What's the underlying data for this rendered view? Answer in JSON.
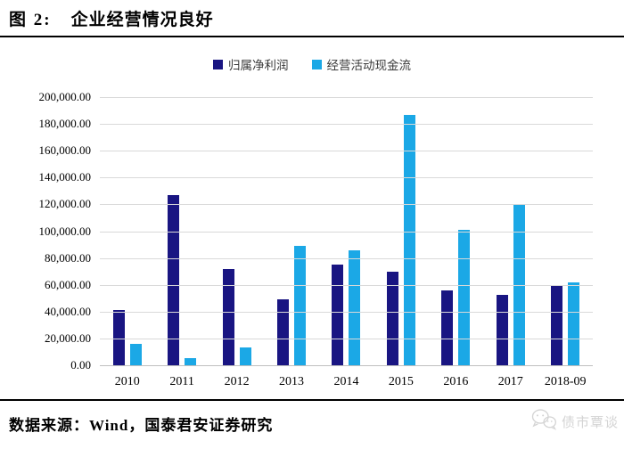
{
  "header": {
    "title_prefix": "图 2:",
    "title_main": "企业经营情况良好"
  },
  "legend": [
    {
      "label": "归属净利润",
      "color": "#191582"
    },
    {
      "label": "经营活动现金流",
      "color": "#1BA8E6"
    }
  ],
  "chart_data": {
    "type": "bar",
    "categories": [
      "2010",
      "2011",
      "2012",
      "2013",
      "2014",
      "2015",
      "2016",
      "2017",
      "2018-09"
    ],
    "series": [
      {
        "name": "归属净利润",
        "color": "#191582",
        "values": [
          41000,
          127000,
          71500,
          49500,
          75000,
          70000,
          56000,
          52500,
          59000
        ]
      },
      {
        "name": "经营活动现金流",
        "color": "#1BA8E6",
        "values": [
          16000,
          5500,
          13500,
          89000,
          85500,
          186500,
          101000,
          120500,
          61500
        ]
      }
    ],
    "ylim": [
      0,
      200000
    ],
    "ytick_step": 20000,
    "ytick_labels": [
      "0.00",
      "20,000.00",
      "40,000.00",
      "60,000.00",
      "80,000.00",
      "100,000.00",
      "120,000.00",
      "140,000.00",
      "160,000.00",
      "180,000.00",
      "200,000.00"
    ],
    "xlabel": "",
    "ylabel": "",
    "grid": true,
    "legend_position": "top"
  },
  "footer": {
    "source": "数据来源：Wind，国泰君安证券研究",
    "watermark": "债市覃谈"
  }
}
